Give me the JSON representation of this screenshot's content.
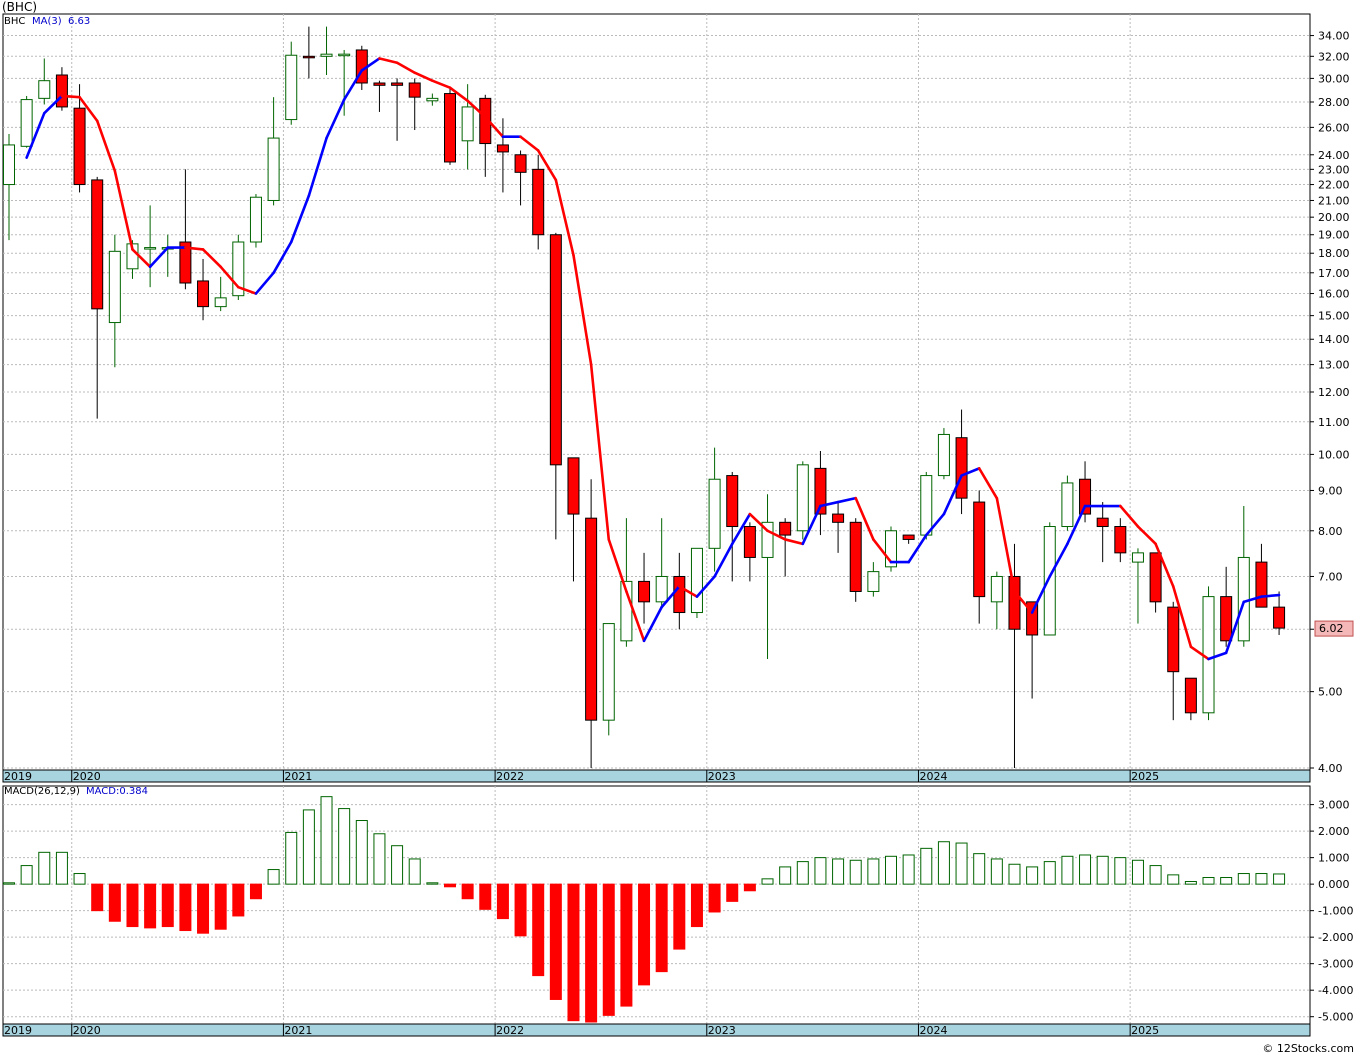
{
  "title": "(BHC)",
  "legend": {
    "ticker": "BHC",
    "ma_label": "MA(3)",
    "ma_value": "6.63",
    "macd_params": "MACD(26,12,9)",
    "macd_value": "MACD:0.384"
  },
  "last_price_label": "6.02",
  "credit": "© 12Stocks.com",
  "colors": {
    "up": "#006400",
    "down": "#ff0000",
    "ma_up": "#0000ff",
    "ma_down": "#ff0000",
    "axis_band": "#a8d4e0",
    "grid": "#bbbbbb",
    "price_tag_bg": "#f4b8b8"
  },
  "chart_data": [
    {
      "type": "candlestick",
      "period": "monthly",
      "y_scale": "log",
      "ylim": [
        4.0,
        36.0
      ],
      "y_ticks": [
        "4.00",
        "5.00",
        "6.00",
        "7.00",
        "8.00",
        "9.00",
        "10.00",
        "11.00",
        "12.00",
        "13.00",
        "14.00",
        "15.00",
        "16.00",
        "17.00",
        "18.00",
        "19.00",
        "20.00",
        "21.00",
        "22.00",
        "23.00",
        "24.00",
        "26.00",
        "28.00",
        "30.00",
        "32.00",
        "34.00"
      ],
      "x_labels": [
        "2019",
        "2020",
        "2021",
        "2022",
        "2023",
        "2024",
        "2025"
      ],
      "start_month": "2019-09",
      "candles": [
        {
          "o": 22.0,
          "h": 25.5,
          "l": 18.7,
          "c": 24.7
        },
        {
          "o": 24.6,
          "h": 28.5,
          "l": 24.5,
          "c": 28.2
        },
        {
          "o": 28.3,
          "h": 31.8,
          "l": 27.8,
          "c": 29.8
        },
        {
          "o": 30.3,
          "h": 31.0,
          "l": 27.3,
          "c": 27.6
        },
        {
          "o": 27.5,
          "h": 29.5,
          "l": 21.5,
          "c": 22.0
        },
        {
          "o": 22.3,
          "h": 22.5,
          "l": 11.1,
          "c": 15.3
        },
        {
          "o": 14.7,
          "h": 19.0,
          "l": 12.9,
          "c": 18.1
        },
        {
          "o": 17.2,
          "h": 18.7,
          "l": 16.7,
          "c": 18.5
        },
        {
          "o": 18.3,
          "h": 20.7,
          "l": 16.3,
          "c": 18.3
        },
        {
          "o": 18.3,
          "h": 19.0,
          "l": 16.8,
          "c": 18.3
        },
        {
          "o": 18.6,
          "h": 23.0,
          "l": 16.2,
          "c": 16.5
        },
        {
          "o": 16.6,
          "h": 17.7,
          "l": 14.8,
          "c": 15.4
        },
        {
          "o": 15.4,
          "h": 16.8,
          "l": 15.2,
          "c": 15.8
        },
        {
          "o": 15.9,
          "h": 19.0,
          "l": 15.7,
          "c": 18.6
        },
        {
          "o": 18.6,
          "h": 21.4,
          "l": 18.3,
          "c": 21.2
        },
        {
          "o": 21.0,
          "h": 28.4,
          "l": 20.7,
          "c": 25.2
        },
        {
          "o": 26.6,
          "h": 33.4,
          "l": 26.2,
          "c": 32.1
        },
        {
          "o": 32.0,
          "h": 34.9,
          "l": 30.0,
          "c": 31.9
        },
        {
          "o": 32.0,
          "h": 34.9,
          "l": 30.3,
          "c": 32.2
        },
        {
          "o": 32.1,
          "h": 32.6,
          "l": 26.9,
          "c": 32.2
        },
        {
          "o": 32.6,
          "h": 33.0,
          "l": 29.0,
          "c": 29.6
        },
        {
          "o": 29.6,
          "h": 29.8,
          "l": 27.2,
          "c": 29.4
        },
        {
          "o": 29.6,
          "h": 30.0,
          "l": 25.0,
          "c": 29.4
        },
        {
          "o": 29.6,
          "h": 30.0,
          "l": 25.8,
          "c": 28.4
        },
        {
          "o": 28.1,
          "h": 28.7,
          "l": 27.7,
          "c": 28.3
        },
        {
          "o": 28.7,
          "h": 29.2,
          "l": 23.3,
          "c": 23.5
        },
        {
          "o": 25.0,
          "h": 29.5,
          "l": 23.0,
          "c": 27.6
        },
        {
          "o": 28.3,
          "h": 28.6,
          "l": 22.5,
          "c": 24.8
        },
        {
          "o": 24.7,
          "h": 26.7,
          "l": 21.5,
          "c": 24.2
        },
        {
          "o": 24.0,
          "h": 24.3,
          "l": 20.7,
          "c": 22.8
        },
        {
          "o": 23.0,
          "h": 24.0,
          "l": 18.2,
          "c": 19.0
        },
        {
          "o": 19.0,
          "h": 19.1,
          "l": 7.8,
          "c": 9.7
        },
        {
          "o": 9.9,
          "h": 9.9,
          "l": 6.9,
          "c": 8.4
        },
        {
          "o": 8.3,
          "h": 9.3,
          "l": 4.0,
          "c": 4.6
        },
        {
          "o": 4.6,
          "h": 6.1,
          "l": 4.4,
          "c": 6.1
        },
        {
          "o": 5.8,
          "h": 8.3,
          "l": 5.7,
          "c": 6.9
        },
        {
          "o": 6.9,
          "h": 7.5,
          "l": 6.1,
          "c": 6.5
        },
        {
          "o": 6.5,
          "h": 8.3,
          "l": 6.4,
          "c": 7.0
        },
        {
          "o": 7.0,
          "h": 7.5,
          "l": 6.0,
          "c": 6.3
        },
        {
          "o": 6.3,
          "h": 7.6,
          "l": 6.2,
          "c": 7.6
        },
        {
          "o": 7.6,
          "h": 10.2,
          "l": 7.1,
          "c": 9.3
        },
        {
          "o": 9.4,
          "h": 9.5,
          "l": 6.9,
          "c": 8.1
        },
        {
          "o": 8.1,
          "h": 8.2,
          "l": 6.9,
          "c": 7.4
        },
        {
          "o": 7.4,
          "h": 8.9,
          "l": 5.5,
          "c": 8.2
        },
        {
          "o": 8.2,
          "h": 8.3,
          "l": 7.0,
          "c": 7.9
        },
        {
          "o": 8.0,
          "h": 9.8,
          "l": 7.8,
          "c": 9.7
        },
        {
          "o": 9.6,
          "h": 10.1,
          "l": 7.9,
          "c": 8.4
        },
        {
          "o": 8.4,
          "h": 8.7,
          "l": 7.5,
          "c": 8.2
        },
        {
          "o": 8.2,
          "h": 8.3,
          "l": 6.5,
          "c": 6.7
        },
        {
          "o": 6.7,
          "h": 7.3,
          "l": 6.6,
          "c": 7.1
        },
        {
          "o": 7.2,
          "h": 8.1,
          "l": 7.1,
          "c": 8.0
        },
        {
          "o": 7.9,
          "h": 7.9,
          "l": 7.7,
          "c": 7.8
        },
        {
          "o": 7.9,
          "h": 9.5,
          "l": 7.8,
          "c": 9.4
        },
        {
          "o": 9.4,
          "h": 10.8,
          "l": 9.3,
          "c": 10.6
        },
        {
          "o": 10.5,
          "h": 11.4,
          "l": 8.4,
          "c": 8.8
        },
        {
          "o": 8.7,
          "h": 9.0,
          "l": 6.1,
          "c": 6.6
        },
        {
          "o": 6.5,
          "h": 7.1,
          "l": 6.0,
          "c": 7.0
        },
        {
          "o": 7.0,
          "h": 7.7,
          "l": 4.0,
          "c": 6.0
        },
        {
          "o": 6.5,
          "h": 6.5,
          "l": 4.9,
          "c": 5.9
        },
        {
          "o": 5.9,
          "h": 8.2,
          "l": 5.9,
          "c": 8.1
        },
        {
          "o": 8.1,
          "h": 9.4,
          "l": 8.0,
          "c": 9.2
        },
        {
          "o": 9.3,
          "h": 9.8,
          "l": 8.2,
          "c": 8.4
        },
        {
          "o": 8.3,
          "h": 8.7,
          "l": 7.3,
          "c": 8.1
        },
        {
          "o": 8.1,
          "h": 8.3,
          "l": 7.3,
          "c": 7.5
        },
        {
          "o": 7.3,
          "h": 7.6,
          "l": 6.1,
          "c": 7.5
        },
        {
          "o": 7.5,
          "h": 7.5,
          "l": 6.3,
          "c": 6.5
        },
        {
          "o": 6.4,
          "h": 6.5,
          "l": 4.6,
          "c": 5.3
        },
        {
          "o": 5.2,
          "h": 5.2,
          "l": 4.6,
          "c": 4.7
        },
        {
          "o": 4.7,
          "h": 6.8,
          "l": 4.6,
          "c": 6.6
        },
        {
          "o": 6.6,
          "h": 7.2,
          "l": 5.7,
          "c": 5.8
        },
        {
          "o": 5.8,
          "h": 8.6,
          "l": 5.7,
          "c": 7.4
        },
        {
          "o": 7.3,
          "h": 7.7,
          "l": 6.4,
          "c": 6.4
        },
        {
          "o": 6.4,
          "h": 6.7,
          "l": 5.9,
          "c": 6.02
        }
      ],
      "ma3": [
        null,
        23.8,
        27.1,
        28.5,
        28.4,
        26.5,
        22.9,
        18.2,
        17.3,
        18.3,
        18.3,
        18.2,
        17.3,
        16.3,
        16.0,
        17.0,
        18.6,
        21.3,
        25.2,
        28.2,
        30.7,
        31.8,
        31.4,
        30.5,
        29.8,
        29.2,
        28.1,
        26.8,
        25.3,
        25.3,
        24.3,
        22.3,
        17.9,
        13.0,
        7.8,
        6.7,
        5.8,
        6.4,
        6.8,
        6.6,
        7.0,
        7.7,
        8.4,
        8.0,
        7.8,
        7.7,
        8.6,
        8.7,
        8.8,
        7.8,
        7.3,
        7.3,
        7.9,
        8.4,
        9.4,
        9.6,
        8.8,
        6.7,
        6.3,
        7.0,
        7.7,
        8.6,
        8.6,
        8.6,
        8.1,
        7.7,
        6.8,
        5.7,
        5.5,
        5.6,
        6.5,
        6.6,
        6.63
      ],
      "macd_hist": {
        "ylim": [
          -5.2,
          3.4
        ],
        "y_ticks": [
          "-5.000",
          "-4.000",
          "-3.000",
          "-2.000",
          "-1.000",
          "0.000",
          "1.000",
          "2.000",
          "3.000"
        ],
        "values": [
          0.05,
          0.7,
          1.2,
          1.2,
          0.4,
          -1.0,
          -1.4,
          -1.6,
          -1.65,
          -1.6,
          -1.75,
          -1.85,
          -1.7,
          -1.2,
          -0.55,
          0.55,
          1.95,
          2.8,
          3.3,
          2.85,
          2.4,
          1.9,
          1.45,
          0.95,
          0.05,
          -0.1,
          -0.55,
          -0.95,
          -1.3,
          -1.95,
          -3.45,
          -4.35,
          -5.15,
          -5.2,
          -4.95,
          -4.6,
          -3.8,
          -3.3,
          -2.45,
          -1.6,
          -1.05,
          -0.65,
          -0.25,
          0.2,
          0.65,
          0.85,
          1.0,
          0.95,
          0.9,
          0.95,
          1.05,
          1.1,
          1.35,
          1.6,
          1.55,
          1.15,
          0.95,
          0.75,
          0.65,
          0.85,
          1.05,
          1.1,
          1.05,
          1.0,
          0.9,
          0.7,
          0.35,
          0.1,
          0.25,
          0.25,
          0.4,
          0.4,
          0.384
        ]
      }
    }
  ]
}
